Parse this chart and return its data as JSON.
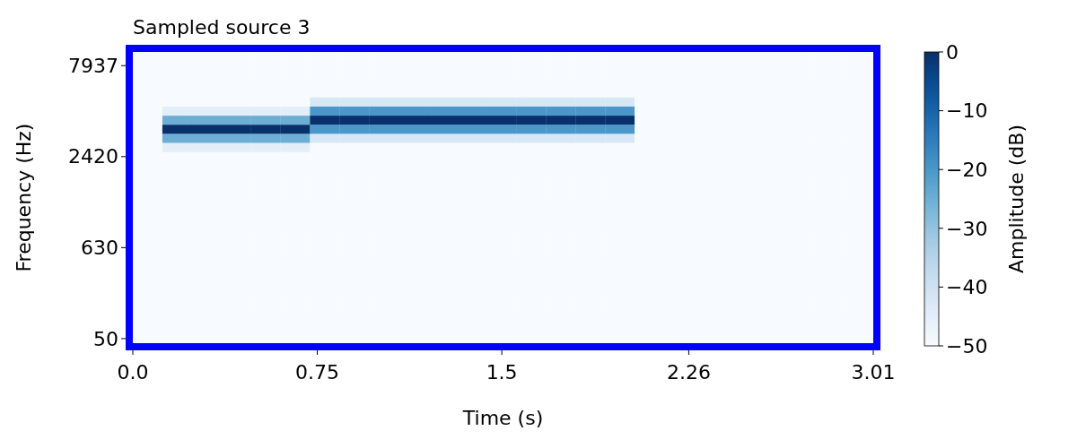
{
  "chart_data": {
    "type": "heatmap",
    "title": "Sampled source 3",
    "xlabel": "Time (s)",
    "ylabel": "Frequency (Hz)",
    "clabel": "Amplitude (dB)",
    "x": [
      0.06,
      0.18,
      0.3,
      0.42,
      0.54,
      0.66,
      0.78,
      0.9,
      1.02,
      1.14,
      1.26,
      1.38,
      1.5,
      1.62,
      1.74,
      1.86,
      1.98,
      2.1,
      2.22,
      2.34,
      2.46,
      2.58,
      2.7,
      2.82,
      2.94
    ],
    "y_categories": [
      null,
      "7937",
      null,
      null,
      null,
      null,
      null,
      null,
      null,
      null,
      null,
      "2420",
      null,
      null,
      null,
      null,
      null,
      null,
      null,
      null,
      null,
      "630",
      null,
      null,
      null,
      null,
      null,
      null,
      null,
      null,
      null,
      "50"
    ],
    "xlim": [
      0,
      3.01
    ],
    "xticks": [
      {
        "value": 0,
        "label": "0.0"
      },
      0.75,
      1.5,
      2.26,
      3.01
    ],
    "clim": [
      -50,
      0
    ],
    "cticks": [
      -50,
      -40,
      -30,
      -20,
      -10,
      0
    ],
    "cells": [
      [
        -50,
        -50,
        -50,
        -50,
        -50,
        -50,
        -50,
        -50,
        -50,
        -50,
        -50,
        -50,
        -50,
        -50,
        -50,
        -50,
        -50,
        -50,
        -50,
        -50,
        -50,
        -50,
        -50,
        -50,
        -50
      ],
      [
        -50,
        -50,
        -50,
        -50,
        -50,
        -50,
        -50,
        -50,
        -50,
        -50,
        -50,
        -50,
        -50,
        -50,
        -50,
        -50,
        -50,
        -50,
        -50,
        -50,
        -50,
        -50,
        -50,
        -50,
        -50
      ],
      [
        -50,
        -50,
        -50,
        -50,
        -50,
        -50,
        -50,
        -50,
        -50,
        -50,
        -50,
        -50,
        -50,
        -50,
        -50,
        -50,
        -50,
        -50,
        -50,
        -50,
        -50,
        -50,
        -50,
        -50,
        -50
      ],
      [
        -50,
        -50,
        -50,
        -50,
        -50,
        -50,
        -50,
        -50,
        -50,
        -50,
        -50,
        -50,
        -50,
        -50,
        -50,
        -50,
        -50,
        -50,
        -50,
        -50,
        -50,
        -50,
        -50,
        -50,
        -50
      ],
      [
        -50,
        -50,
        -50,
        -50,
        -50,
        -50,
        -50,
        -50,
        -50,
        -50,
        -50,
        -50,
        -50,
        -50,
        -50,
        -50,
        -50,
        -50,
        -50,
        -50,
        -50,
        -50,
        -50,
        -50,
        -50
      ],
      [
        -50,
        -50,
        -50,
        -50,
        -50,
        -50,
        -42,
        -42,
        -42,
        -42,
        -42,
        -42,
        -42,
        -42,
        -42,
        -42,
        -42,
        -50,
        -50,
        -50,
        -50,
        -50,
        -50,
        -50,
        -50
      ],
      [
        -50,
        -45,
        -45,
        -45,
        -45,
        -45,
        -20,
        -20,
        -20,
        -20,
        -20,
        -20,
        -20,
        -20,
        -20,
        -20,
        -20,
        -50,
        -50,
        -50,
        -50,
        -50,
        -50,
        -50,
        -50
      ],
      [
        -50,
        -25,
        -25,
        -25,
        -25,
        -25,
        0,
        0,
        0,
        0,
        0,
        0,
        0,
        0,
        0,
        0,
        0,
        -50,
        -50,
        -50,
        -50,
        -50,
        -50,
        -50,
        -50
      ],
      [
        -50,
        0,
        0,
        0,
        0,
        0,
        -20,
        -20,
        -20,
        -20,
        -20,
        -20,
        -20,
        -20,
        -20,
        -20,
        -20,
        -50,
        -50,
        -50,
        -50,
        -50,
        -50,
        -50,
        -50
      ],
      [
        -50,
        -25,
        -25,
        -25,
        -25,
        -25,
        -42,
        -42,
        -42,
        -42,
        -42,
        -42,
        -42,
        -42,
        -42,
        -42,
        -42,
        -50,
        -50,
        -50,
        -50,
        -50,
        -50,
        -50,
        -50
      ],
      [
        -50,
        -45,
        -45,
        -45,
        -45,
        -45,
        -50,
        -50,
        -50,
        -50,
        -50,
        -50,
        -50,
        -50,
        -50,
        -50,
        -50,
        -50,
        -50,
        -50,
        -50,
        -50,
        -50,
        -50,
        -50
      ],
      [
        -50,
        -50,
        -50,
        -50,
        -50,
        -50,
        -50,
        -50,
        -50,
        -50,
        -50,
        -50,
        -50,
        -50,
        -50,
        -50,
        -50,
        -50,
        -50,
        -50,
        -50,
        -50,
        -50,
        -50,
        -50
      ],
      [
        -50,
        -50,
        -50,
        -50,
        -50,
        -50,
        -50,
        -50,
        -50,
        -50,
        -50,
        -50,
        -50,
        -50,
        -50,
        -50,
        -50,
        -50,
        -50,
        -50,
        -50,
        -50,
        -50,
        -50,
        -50
      ],
      [
        -50,
        -50,
        -50,
        -50,
        -50,
        -50,
        -50,
        -50,
        -50,
        -50,
        -50,
        -50,
        -50,
        -50,
        -50,
        -50,
        -50,
        -50,
        -50,
        -50,
        -50,
        -50,
        -50,
        -50,
        -50
      ],
      [
        -50,
        -50,
        -50,
        -50,
        -50,
        -50,
        -50,
        -50,
        -50,
        -50,
        -50,
        -50,
        -50,
        -50,
        -50,
        -50,
        -50,
        -50,
        -50,
        -50,
        -50,
        -50,
        -50,
        -50,
        -50
      ],
      [
        -50,
        -50,
        -50,
        -50,
        -50,
        -50,
        -50,
        -50,
        -50,
        -50,
        -50,
        -50,
        -50,
        -50,
        -50,
        -50,
        -50,
        -50,
        -50,
        -50,
        -50,
        -50,
        -50,
        -50,
        -50
      ],
      [
        -50,
        -50,
        -50,
        -50,
        -50,
        -50,
        -50,
        -50,
        -50,
        -50,
        -50,
        -50,
        -50,
        -50,
        -50,
        -50,
        -50,
        -50,
        -50,
        -50,
        -50,
        -50,
        -50,
        -50,
        -50
      ],
      [
        -50,
        -50,
        -50,
        -50,
        -50,
        -50,
        -50,
        -50,
        -50,
        -50,
        -50,
        -50,
        -50,
        -50,
        -50,
        -50,
        -50,
        -50,
        -50,
        -50,
        -50,
        -50,
        -50,
        -50,
        -50
      ],
      [
        -50,
        -50,
        -50,
        -50,
        -50,
        -50,
        -50,
        -50,
        -50,
        -50,
        -50,
        -50,
        -50,
        -50,
        -50,
        -50,
        -50,
        -50,
        -50,
        -50,
        -50,
        -50,
        -50,
        -50,
        -50
      ],
      [
        -50,
        -50,
        -50,
        -50,
        -50,
        -50,
        -50,
        -50,
        -50,
        -50,
        -50,
        -50,
        -50,
        -50,
        -50,
        -50,
        -50,
        -50,
        -50,
        -50,
        -50,
        -50,
        -50,
        -50,
        -50
      ],
      [
        -50,
        -50,
        -50,
        -50,
        -50,
        -50,
        -50,
        -50,
        -50,
        -50,
        -50,
        -50,
        -50,
        -50,
        -50,
        -50,
        -50,
        -50,
        -50,
        -50,
        -50,
        -50,
        -50,
        -50,
        -50
      ],
      [
        -50,
        -50,
        -50,
        -50,
        -50,
        -50,
        -50,
        -50,
        -50,
        -50,
        -50,
        -50,
        -50,
        -50,
        -50,
        -50,
        -50,
        -50,
        -50,
        -50,
        -50,
        -50,
        -50,
        -50,
        -50
      ],
      [
        -50,
        -50,
        -50,
        -50,
        -50,
        -50,
        -50,
        -50,
        -50,
        -50,
        -50,
        -50,
        -50,
        -50,
        -50,
        -50,
        -50,
        -50,
        -50,
        -50,
        -50,
        -50,
        -50,
        -50,
        -50
      ],
      [
        -50,
        -50,
        -50,
        -50,
        -50,
        -50,
        -50,
        -50,
        -50,
        -50,
        -50,
        -50,
        -50,
        -50,
        -50,
        -50,
        -50,
        -50,
        -50,
        -50,
        -50,
        -50,
        -50,
        -50,
        -50
      ],
      [
        -50,
        -50,
        -50,
        -50,
        -50,
        -50,
        -50,
        -50,
        -50,
        -50,
        -50,
        -50,
        -50,
        -50,
        -50,
        -50,
        -50,
        -50,
        -50,
        -50,
        -50,
        -50,
        -50,
        -50,
        -50
      ],
      [
        -50,
        -50,
        -50,
        -50,
        -50,
        -50,
        -50,
        -50,
        -50,
        -50,
        -50,
        -50,
        -50,
        -50,
        -50,
        -50,
        -50,
        -50,
        -50,
        -50,
        -50,
        -50,
        -50,
        -50,
        -50
      ],
      [
        -50,
        -50,
        -50,
        -50,
        -50,
        -50,
        -50,
        -50,
        -50,
        -50,
        -50,
        -50,
        -50,
        -50,
        -50,
        -50,
        -50,
        -50,
        -50,
        -50,
        -50,
        -50,
        -50,
        -50,
        -50
      ],
      [
        -50,
        -50,
        -50,
        -50,
        -50,
        -50,
        -50,
        -50,
        -50,
        -50,
        -50,
        -50,
        -50,
        -50,
        -50,
        -50,
        -50,
        -50,
        -50,
        -50,
        -50,
        -50,
        -50,
        -50,
        -50
      ],
      [
        -50,
        -50,
        -50,
        -50,
        -50,
        -50,
        -50,
        -50,
        -50,
        -50,
        -50,
        -50,
        -50,
        -50,
        -50,
        -50,
        -50,
        -50,
        -50,
        -50,
        -50,
        -50,
        -50,
        -50,
        -50
      ],
      [
        -50,
        -50,
        -50,
        -50,
        -50,
        -50,
        -50,
        -50,
        -50,
        -50,
        -50,
        -50,
        -50,
        -50,
        -50,
        -50,
        -50,
        -50,
        -50,
        -50,
        -50,
        -50,
        -50,
        -50,
        -50
      ],
      [
        -50,
        -50,
        -50,
        -50,
        -50,
        -50,
        -50,
        -50,
        -50,
        -50,
        -50,
        -50,
        -50,
        -50,
        -50,
        -50,
        -50,
        -50,
        -50,
        -50,
        -50,
        -50,
        -50,
        -50,
        -50
      ],
      [
        -50,
        -50,
        -50,
        -50,
        -50,
        -50,
        -50,
        -50,
        -50,
        -50,
        -50,
        -50,
        -50,
        -50,
        -50,
        -50,
        -50,
        -50,
        -50,
        -50,
        -50,
        -50,
        -50,
        -50,
        -50
      ]
    ]
  }
}
